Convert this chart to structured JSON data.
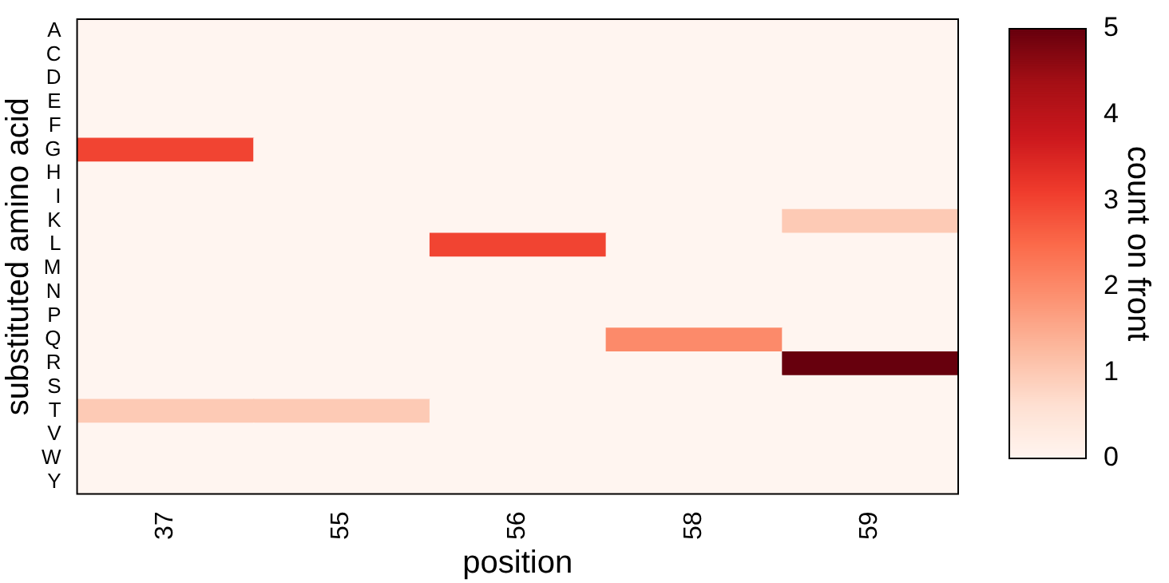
{
  "chart_data": {
    "type": "heatmap",
    "xlabel": "position",
    "ylabel": "substituted amino acid",
    "clabel": "count on front",
    "categories": [
      "37",
      "55",
      "56",
      "58",
      "59"
    ],
    "y_categories": [
      "A",
      "C",
      "D",
      "E",
      "F",
      "G",
      "H",
      "I",
      "K",
      "L",
      "M",
      "N",
      "P",
      "Q",
      "R",
      "S",
      "T",
      "V",
      "W",
      "Y"
    ],
    "cells": [
      [
        0,
        0,
        0,
        0,
        0
      ],
      [
        0,
        0,
        0,
        0,
        0
      ],
      [
        0,
        0,
        0,
        0,
        0
      ],
      [
        0,
        0,
        0,
        0,
        0
      ],
      [
        0,
        0,
        0,
        0,
        0
      ],
      [
        3,
        0,
        0,
        0,
        0
      ],
      [
        0,
        0,
        0,
        0,
        0
      ],
      [
        0,
        0,
        0,
        0,
        0
      ],
      [
        0,
        0,
        0,
        0,
        1
      ],
      [
        0,
        0,
        3,
        0,
        0
      ],
      [
        0,
        0,
        0,
        0,
        0
      ],
      [
        0,
        0,
        0,
        0,
        0
      ],
      [
        0,
        0,
        0,
        0,
        0
      ],
      [
        0,
        0,
        0,
        2,
        0
      ],
      [
        0,
        0,
        0,
        0,
        5
      ],
      [
        0,
        0,
        0,
        0,
        0
      ],
      [
        1,
        1,
        0,
        0,
        0
      ],
      [
        0,
        0,
        0,
        0,
        0
      ],
      [
        0,
        0,
        0,
        0,
        0
      ],
      [
        0,
        0,
        0,
        0,
        0
      ]
    ],
    "clim": [
      0,
      5
    ],
    "cticks": [
      0,
      1,
      2,
      3,
      4,
      5
    ]
  }
}
